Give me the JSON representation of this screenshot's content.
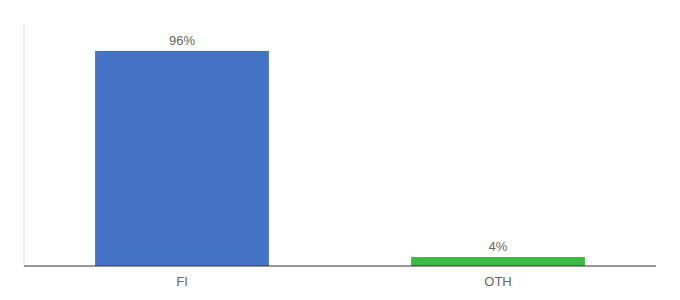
{
  "chart_data": {
    "type": "bar",
    "categories": [
      "FI",
      "OTH"
    ],
    "values": [
      96,
      4
    ],
    "value_labels": [
      "96%",
      "4%"
    ],
    "colors": [
      "#4472c4",
      "#3cb843"
    ],
    "ylim": [
      0,
      108
    ],
    "data_labels": true,
    "tick_labels": "x"
  }
}
